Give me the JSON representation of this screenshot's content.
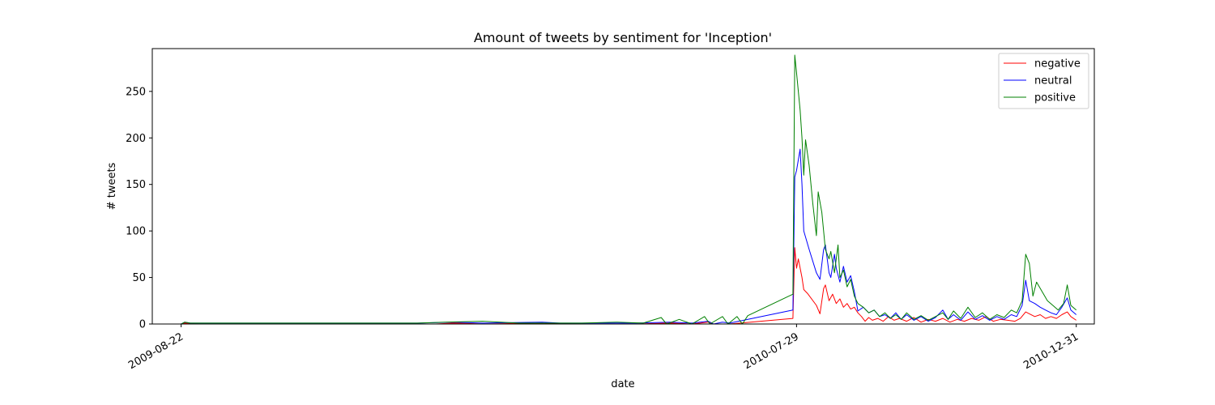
{
  "chart_data": {
    "type": "line",
    "title": "Amount of tweets by sentiment for 'Inception'",
    "xlabel": "date",
    "ylabel": "# tweets",
    "x_ticks": [
      "2009-08-22",
      "2010-07-29",
      "2010-12-31"
    ],
    "y_ticks": [
      0,
      50,
      100,
      150,
      200,
      250
    ],
    "xlim": [
      "2009-08-06",
      "2011-01-10"
    ],
    "ylim": [
      0,
      296
    ],
    "grid": false,
    "legend_position": "top-right",
    "series": [
      {
        "name": "negative",
        "color": "#ff0000",
        "points": [
          [
            "2009-08-22",
            0
          ],
          [
            "2009-08-24",
            1
          ],
          [
            "2009-09-01",
            0
          ],
          [
            "2009-10-01",
            0
          ],
          [
            "2009-11-15",
            0
          ],
          [
            "2010-01-10",
            0
          ],
          [
            "2010-01-20",
            1
          ],
          [
            "2010-02-05",
            0
          ],
          [
            "2010-03-10",
            1
          ],
          [
            "2010-04-01",
            0
          ],
          [
            "2010-05-01",
            0
          ],
          [
            "2010-05-20",
            1
          ],
          [
            "2010-06-01",
            0
          ],
          [
            "2010-06-10",
            2
          ],
          [
            "2010-06-13",
            0
          ],
          [
            "2010-06-22",
            0
          ],
          [
            "2010-07-27",
            6
          ],
          [
            "2010-07-28",
            82
          ],
          [
            "2010-07-29",
            60
          ],
          [
            "2010-07-30",
            70
          ],
          [
            "2010-08-01",
            50
          ],
          [
            "2010-08-02",
            37
          ],
          [
            "2010-08-04",
            33
          ],
          [
            "2010-08-09",
            20
          ],
          [
            "2010-08-11",
            11
          ],
          [
            "2010-08-13",
            38
          ],
          [
            "2010-08-14",
            42
          ],
          [
            "2010-08-16",
            25
          ],
          [
            "2010-08-18",
            32
          ],
          [
            "2010-08-20",
            22
          ],
          [
            "2010-08-22",
            27
          ],
          [
            "2010-08-24",
            18
          ],
          [
            "2010-08-26",
            22
          ],
          [
            "2010-08-28",
            16
          ],
          [
            "2010-08-30",
            18
          ],
          [
            "2010-09-01",
            12
          ],
          [
            "2010-09-03",
            8
          ],
          [
            "2010-09-05",
            3
          ],
          [
            "2010-09-07",
            7
          ],
          [
            "2010-09-09",
            4
          ],
          [
            "2010-09-12",
            6
          ],
          [
            "2010-09-15",
            3
          ],
          [
            "2010-09-18",
            8
          ],
          [
            "2010-09-21",
            4
          ],
          [
            "2010-09-24",
            6
          ],
          [
            "2010-09-28",
            3
          ],
          [
            "2010-10-02",
            7
          ],
          [
            "2010-10-06",
            2
          ],
          [
            "2010-10-10",
            5
          ],
          [
            "2010-10-14",
            3
          ],
          [
            "2010-10-18",
            6
          ],
          [
            "2010-10-22",
            2
          ],
          [
            "2010-10-26",
            5
          ],
          [
            "2010-10-30",
            3
          ],
          [
            "2010-11-03",
            6
          ],
          [
            "2010-11-07",
            4
          ],
          [
            "2010-11-11",
            8
          ],
          [
            "2010-11-15",
            3
          ],
          [
            "2010-11-19",
            5
          ],
          [
            "2010-11-23",
            4
          ],
          [
            "2010-11-27",
            3
          ],
          [
            "2010-11-30",
            6
          ],
          [
            "2010-12-03",
            13
          ],
          [
            "2010-12-05",
            11
          ],
          [
            "2010-12-08",
            8
          ],
          [
            "2010-12-11",
            10
          ],
          [
            "2010-12-14",
            6
          ],
          [
            "2010-12-17",
            8
          ],
          [
            "2010-12-20",
            6
          ],
          [
            "2010-12-23",
            10
          ],
          [
            "2010-12-26",
            13
          ],
          [
            "2010-12-28",
            8
          ],
          [
            "2010-12-31",
            4
          ]
        ]
      },
      {
        "name": "neutral",
        "color": "#0000ff",
        "points": [
          [
            "2009-08-22",
            0
          ],
          [
            "2009-08-24",
            2
          ],
          [
            "2009-08-27",
            1
          ],
          [
            "2009-09-15",
            1
          ],
          [
            "2009-11-01",
            1
          ],
          [
            "2009-12-31",
            1
          ],
          [
            "2010-01-20",
            2
          ],
          [
            "2010-02-05",
            1
          ],
          [
            "2010-03-10",
            2
          ],
          [
            "2010-03-20",
            1
          ],
          [
            "2010-05-01",
            1
          ],
          [
            "2010-05-20",
            2
          ],
          [
            "2010-06-01",
            1
          ],
          [
            "2010-06-10",
            3
          ],
          [
            "2010-06-13",
            0
          ],
          [
            "2010-06-18",
            2
          ],
          [
            "2010-06-22",
            1
          ],
          [
            "2010-07-27",
            15
          ],
          [
            "2010-07-28",
            158
          ],
          [
            "2010-07-29",
            165
          ],
          [
            "2010-07-31",
            188
          ],
          [
            "2010-08-01",
            150
          ],
          [
            "2010-08-02",
            100
          ],
          [
            "2010-08-05",
            80
          ],
          [
            "2010-08-09",
            55
          ],
          [
            "2010-08-11",
            48
          ],
          [
            "2010-08-13",
            80
          ],
          [
            "2010-08-14",
            85
          ],
          [
            "2010-08-16",
            55
          ],
          [
            "2010-08-17",
            50
          ],
          [
            "2010-08-19",
            75
          ],
          [
            "2010-08-20",
            60
          ],
          [
            "2010-08-22",
            45
          ],
          [
            "2010-08-24",
            62
          ],
          [
            "2010-08-26",
            45
          ],
          [
            "2010-08-28",
            52
          ],
          [
            "2010-08-30",
            35
          ],
          [
            "2010-09-01",
            14
          ],
          [
            "2010-09-04",
            18
          ],
          [
            "2010-09-07",
            12
          ],
          [
            "2010-09-10",
            15
          ],
          [
            "2010-09-13",
            8
          ],
          [
            "2010-09-16",
            10
          ],
          [
            "2010-09-19",
            6
          ],
          [
            "2010-09-22",
            12
          ],
          [
            "2010-09-25",
            5
          ],
          [
            "2010-09-28",
            10
          ],
          [
            "2010-10-02",
            4
          ],
          [
            "2010-10-06",
            8
          ],
          [
            "2010-10-10",
            3
          ],
          [
            "2010-10-14",
            7
          ],
          [
            "2010-10-18",
            15
          ],
          [
            "2010-10-21",
            5
          ],
          [
            "2010-10-24",
            10
          ],
          [
            "2010-10-28",
            4
          ],
          [
            "2010-11-01",
            13
          ],
          [
            "2010-11-05",
            5
          ],
          [
            "2010-11-09",
            9
          ],
          [
            "2010-11-13",
            4
          ],
          [
            "2010-11-17",
            8
          ],
          [
            "2010-11-21",
            5
          ],
          [
            "2010-11-25",
            10
          ],
          [
            "2010-11-28",
            8
          ],
          [
            "2010-12-01",
            20
          ],
          [
            "2010-12-03",
            47
          ],
          [
            "2010-12-05",
            25
          ],
          [
            "2010-12-08",
            22
          ],
          [
            "2010-12-11",
            18
          ],
          [
            "2010-12-14",
            15
          ],
          [
            "2010-12-17",
            12
          ],
          [
            "2010-12-20",
            10
          ],
          [
            "2010-12-23",
            18
          ],
          [
            "2010-12-26",
            28
          ],
          [
            "2010-12-28",
            15
          ],
          [
            "2010-12-31",
            10
          ]
        ]
      },
      {
        "name": "positive",
        "color": "#008000",
        "points": [
          [
            "2009-08-22",
            0
          ],
          [
            "2009-08-24",
            2
          ],
          [
            "2009-08-27",
            1
          ],
          [
            "2009-10-01",
            1
          ],
          [
            "2009-12-31",
            1
          ],
          [
            "2010-01-15",
            2
          ],
          [
            "2010-02-05",
            3
          ],
          [
            "2010-02-25",
            1
          ],
          [
            "2010-04-01",
            1
          ],
          [
            "2010-04-20",
            2
          ],
          [
            "2010-05-05",
            1
          ],
          [
            "2010-05-15",
            7
          ],
          [
            "2010-05-18",
            0
          ],
          [
            "2010-05-25",
            5
          ],
          [
            "2010-06-01",
            0
          ],
          [
            "2010-06-08",
            8
          ],
          [
            "2010-06-11",
            0
          ],
          [
            "2010-06-18",
            8
          ],
          [
            "2010-06-21",
            0
          ],
          [
            "2010-06-26",
            8
          ],
          [
            "2010-06-29",
            0
          ],
          [
            "2010-07-02",
            9
          ],
          [
            "2010-07-27",
            32
          ],
          [
            "2010-07-28",
            289
          ],
          [
            "2010-07-29",
            270
          ],
          [
            "2010-07-31",
            230
          ],
          [
            "2010-08-01",
            200
          ],
          [
            "2010-08-02",
            160
          ],
          [
            "2010-08-03",
            198
          ],
          [
            "2010-08-05",
            170
          ],
          [
            "2010-08-07",
            130
          ],
          [
            "2010-08-09",
            95
          ],
          [
            "2010-08-10",
            142
          ],
          [
            "2010-08-12",
            120
          ],
          [
            "2010-08-14",
            80
          ],
          [
            "2010-08-16",
            70
          ],
          [
            "2010-08-17",
            78
          ],
          [
            "2010-08-19",
            55
          ],
          [
            "2010-08-21",
            85
          ],
          [
            "2010-08-22",
            50
          ],
          [
            "2010-08-24",
            58
          ],
          [
            "2010-08-26",
            40
          ],
          [
            "2010-08-28",
            48
          ],
          [
            "2010-08-30",
            30
          ],
          [
            "2010-09-01",
            22
          ],
          [
            "2010-09-04",
            18
          ],
          [
            "2010-09-07",
            12
          ],
          [
            "2010-09-10",
            15
          ],
          [
            "2010-09-13",
            8
          ],
          [
            "2010-09-16",
            12
          ],
          [
            "2010-09-19",
            6
          ],
          [
            "2010-09-22",
            10
          ],
          [
            "2010-09-25",
            5
          ],
          [
            "2010-09-28",
            12
          ],
          [
            "2010-10-02",
            5
          ],
          [
            "2010-10-06",
            9
          ],
          [
            "2010-10-10",
            4
          ],
          [
            "2010-10-14",
            8
          ],
          [
            "2010-10-18",
            12
          ],
          [
            "2010-10-21",
            5
          ],
          [
            "2010-10-24",
            14
          ],
          [
            "2010-10-28",
            6
          ],
          [
            "2010-11-01",
            18
          ],
          [
            "2010-11-05",
            7
          ],
          [
            "2010-11-09",
            12
          ],
          [
            "2010-11-13",
            5
          ],
          [
            "2010-11-17",
            10
          ],
          [
            "2010-11-21",
            7
          ],
          [
            "2010-11-25",
            15
          ],
          [
            "2010-11-28",
            12
          ],
          [
            "2010-12-01",
            25
          ],
          [
            "2010-12-03",
            75
          ],
          [
            "2010-12-05",
            65
          ],
          [
            "2010-12-07",
            30
          ],
          [
            "2010-12-09",
            45
          ],
          [
            "2010-12-12",
            35
          ],
          [
            "2010-12-15",
            25
          ],
          [
            "2010-12-18",
            20
          ],
          [
            "2010-12-21",
            15
          ],
          [
            "2010-12-24",
            22
          ],
          [
            "2010-12-26",
            42
          ],
          [
            "2010-12-28",
            20
          ],
          [
            "2010-12-31",
            15
          ]
        ]
      }
    ]
  }
}
